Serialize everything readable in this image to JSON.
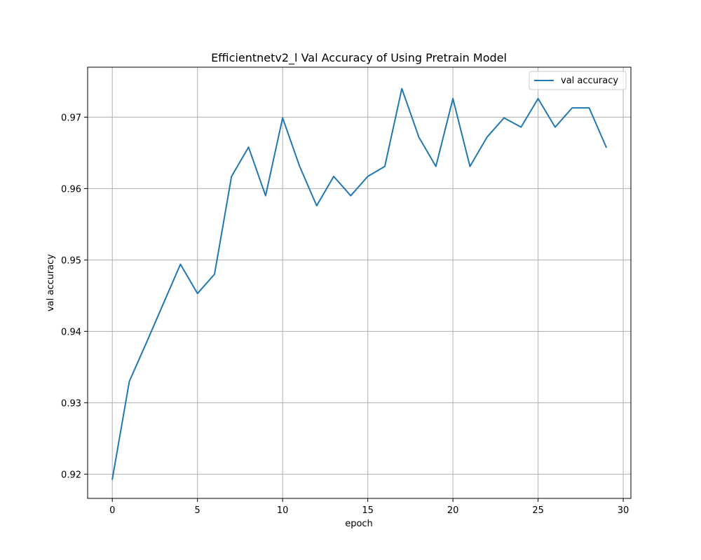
{
  "chart_data": {
    "type": "line",
    "title": "Efficientnetv2_l Val Accuracy of Using Pretrain Model",
    "xlabel": "epoch",
    "ylabel": "val accuracy",
    "xlim": [
      -1.45,
      30.45
    ],
    "ylim": [
      0.9166,
      0.977
    ],
    "x_ticks": [
      0,
      5,
      10,
      15,
      20,
      25,
      30
    ],
    "x_tick_labels": [
      "0",
      "5",
      "10",
      "15",
      "20",
      "25",
      "30"
    ],
    "y_ticks": [
      0.92,
      0.93,
      0.94,
      0.95,
      0.96,
      0.97
    ],
    "y_tick_labels": [
      "0.92",
      "0.93",
      "0.94",
      "0.95",
      "0.96",
      "0.97"
    ],
    "grid": true,
    "legend_position": "top-right",
    "series": [
      {
        "name": "val accuracy",
        "color": "#1f77b4",
        "x": [
          0,
          1,
          2,
          3,
          4,
          5,
          6,
          7,
          8,
          9,
          10,
          11,
          12,
          13,
          14,
          15,
          16,
          17,
          18,
          19,
          20,
          21,
          22,
          23,
          24,
          25,
          26,
          27,
          28,
          29
        ],
        "values": [
          0.9193,
          0.933,
          0.9384,
          0.9439,
          0.9494,
          0.9453,
          0.948,
          0.9617,
          0.9658,
          0.959,
          0.9699,
          0.9631,
          0.9576,
          0.9617,
          0.959,
          0.9617,
          0.9631,
          0.974,
          0.9672,
          0.9631,
          0.9726,
          0.9631,
          0.9672,
          0.9699,
          0.9686,
          0.9726,
          0.9686,
          0.9713,
          0.9713,
          0.9658
        ]
      }
    ]
  }
}
